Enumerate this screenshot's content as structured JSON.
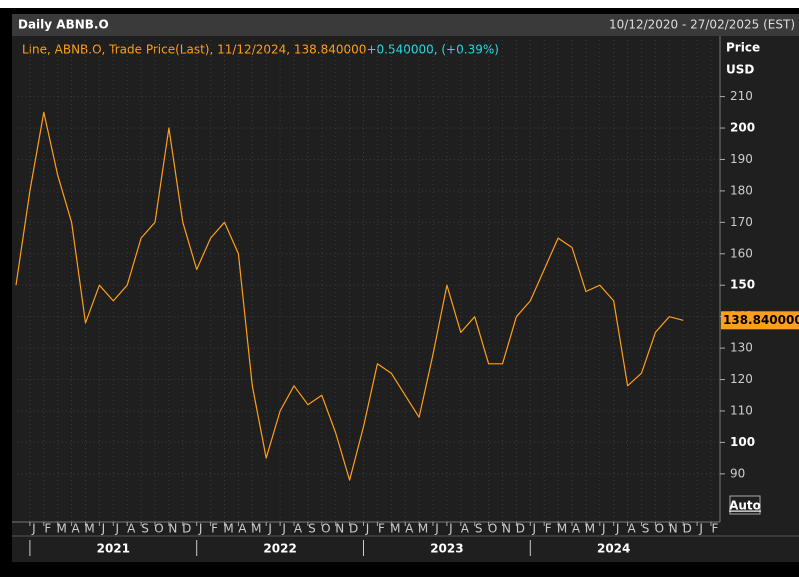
{
  "chart_data": {
    "type": "line",
    "title": "Daily ABNB.O",
    "date_range": "10/12/2020 - 27/02/2025 (EST)",
    "legend_text": "Line, ABNB.O, Trade Price(Last), 11/12/2024, 138.840000",
    "change_text": "+0.540000, (+0.39%)",
    "y_label": "Price",
    "y_unit": "USD",
    "scale_mode": "Auto",
    "last_value_label": "138.840000",
    "x": [
      "2020-12",
      "2021-01",
      "2021-02",
      "2021-03",
      "2021-04",
      "2021-05",
      "2021-06",
      "2021-07",
      "2021-08",
      "2021-09",
      "2021-10",
      "2021-11",
      "2021-12",
      "2022-01",
      "2022-02",
      "2022-03",
      "2022-04",
      "2022-05",
      "2022-06",
      "2022-07",
      "2022-08",
      "2022-09",
      "2022-10",
      "2022-11",
      "2022-12",
      "2023-01",
      "2023-02",
      "2023-03",
      "2023-04",
      "2023-05",
      "2023-06",
      "2023-07",
      "2023-08",
      "2023-09",
      "2023-10",
      "2023-11",
      "2023-12",
      "2024-01",
      "2024-02",
      "2024-03",
      "2024-04",
      "2024-05",
      "2024-06",
      "2024-07",
      "2024-08",
      "2024-09",
      "2024-10",
      "2024-11",
      "2024-12"
    ],
    "series": [
      {
        "name": "ABNB.O",
        "color": "#ff9e1b",
        "values": [
          150,
          180,
          205,
          185,
          170,
          138,
          150,
          145,
          150,
          165,
          170,
          200,
          170,
          155,
          165,
          170,
          160,
          118,
          95,
          110,
          118,
          112,
          115,
          103,
          88,
          105,
          125,
          122,
          115,
          108,
          128,
          150,
          135,
          140,
          125,
          125,
          140,
          145,
          155,
          165,
          162,
          148,
          150,
          145,
          118,
          122,
          135,
          140,
          138.84
        ]
      }
    ],
    "xlim": [
      "2020-12",
      "2025-02"
    ],
    "xticks": [
      {
        "value": "2021-01",
        "label": "J"
      },
      {
        "value": "2021-02",
        "label": "F"
      },
      {
        "value": "2021-03",
        "label": "M"
      },
      {
        "value": "2021-04",
        "label": "A"
      },
      {
        "value": "2021-05",
        "label": "M"
      },
      {
        "value": "2021-06",
        "label": "J"
      },
      {
        "value": "2021-07",
        "label": "J"
      },
      {
        "value": "2021-08",
        "label": "A"
      },
      {
        "value": "2021-09",
        "label": "S"
      },
      {
        "value": "2021-10",
        "label": "O"
      },
      {
        "value": "2021-11",
        "label": "N"
      },
      {
        "value": "2021-12",
        "label": "D"
      },
      {
        "value": "2022-01",
        "label": "J"
      },
      {
        "value": "2022-02",
        "label": "F"
      },
      {
        "value": "2022-03",
        "label": "M"
      },
      {
        "value": "2022-04",
        "label": "A"
      },
      {
        "value": "2022-05",
        "label": "M"
      },
      {
        "value": "2022-06",
        "label": "J"
      },
      {
        "value": "2022-07",
        "label": "J"
      },
      {
        "value": "2022-08",
        "label": "A"
      },
      {
        "value": "2022-09",
        "label": "S"
      },
      {
        "value": "2022-10",
        "label": "O"
      },
      {
        "value": "2022-11",
        "label": "N"
      },
      {
        "value": "2022-12",
        "label": "D"
      },
      {
        "value": "2023-01",
        "label": "J"
      },
      {
        "value": "2023-02",
        "label": "F"
      },
      {
        "value": "2023-03",
        "label": "M"
      },
      {
        "value": "2023-04",
        "label": "A"
      },
      {
        "value": "2023-05",
        "label": "M"
      },
      {
        "value": "2023-06",
        "label": "J"
      },
      {
        "value": "2023-07",
        "label": "J"
      },
      {
        "value": "2023-08",
        "label": "A"
      },
      {
        "value": "2023-09",
        "label": "S"
      },
      {
        "value": "2023-10",
        "label": "O"
      },
      {
        "value": "2023-11",
        "label": "N"
      },
      {
        "value": "2023-12",
        "label": "D"
      },
      {
        "value": "2024-01",
        "label": "J"
      },
      {
        "value": "2024-02",
        "label": "F"
      },
      {
        "value": "2024-03",
        "label": "M"
      },
      {
        "value": "2024-04",
        "label": "A"
      },
      {
        "value": "2024-05",
        "label": "M"
      },
      {
        "value": "2024-06",
        "label": "J"
      },
      {
        "value": "2024-07",
        "label": "J"
      },
      {
        "value": "2024-08",
        "label": "A"
      },
      {
        "value": "2024-09",
        "label": "S"
      },
      {
        "value": "2024-10",
        "label": "O"
      },
      {
        "value": "2024-11",
        "label": "N"
      },
      {
        "value": "2024-12",
        "label": "D"
      },
      {
        "value": "2025-01",
        "label": "J"
      },
      {
        "value": "2025-02",
        "label": "F"
      }
    ],
    "years": [
      "2021",
      "2022",
      "2023",
      "2024"
    ],
    "ylim": [
      78.5,
      228
    ],
    "yticks": [
      90,
      100,
      110,
      120,
      130,
      140,
      150,
      160,
      170,
      180,
      190,
      200,
      210
    ],
    "grid": true
  }
}
